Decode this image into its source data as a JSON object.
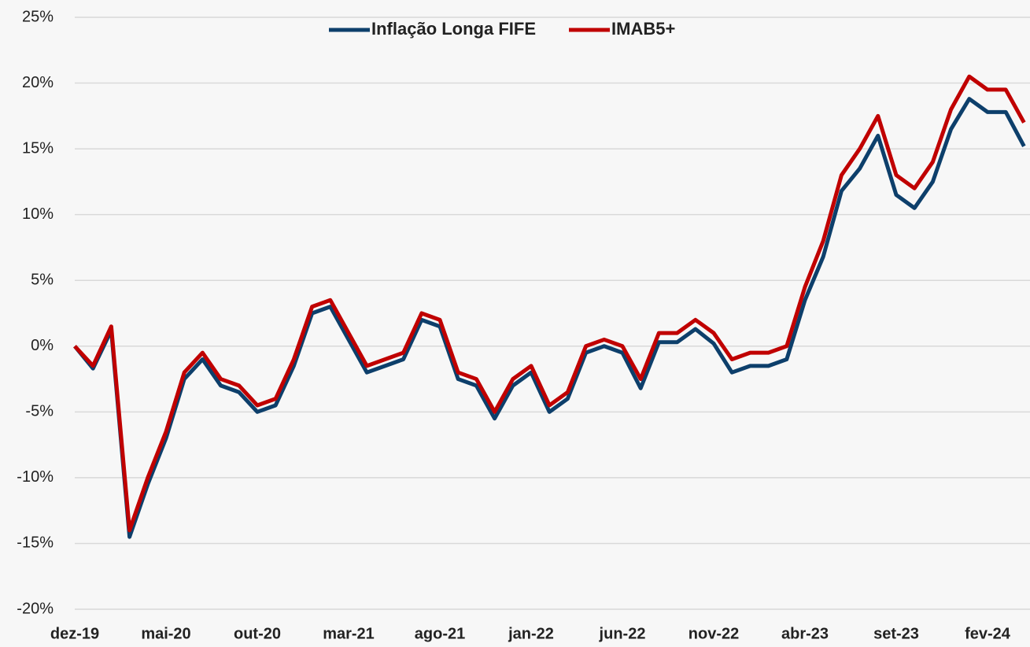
{
  "chart_data": {
    "type": "line",
    "categories": [
      "dez-19",
      null,
      null,
      null,
      null,
      "mai-20",
      null,
      null,
      null,
      null,
      "out-20",
      null,
      null,
      null,
      null,
      "mar-21",
      null,
      null,
      null,
      null,
      "ago-21",
      null,
      null,
      null,
      null,
      "jan-22",
      null,
      null,
      null,
      null,
      "jun-22",
      null,
      null,
      null,
      null,
      "nov-22",
      null,
      null,
      null,
      null,
      "abr-23",
      null,
      null,
      null,
      null,
      "set-23",
      null,
      null,
      null,
      null,
      "fev-24",
      null,
      null
    ],
    "series": [
      {
        "name": "Inflação Longa FIFE",
        "color": "#0d3f6b",
        "values": [
          0,
          -1.7,
          1.2,
          -14.5,
          -10.5,
          -7,
          -2.5,
          -1,
          -3,
          -3.5,
          -5,
          -4.5,
          -1.5,
          2.5,
          3,
          0.5,
          -2,
          -1.5,
          -1,
          2,
          1.5,
          -2.5,
          -3,
          -5.5,
          -3,
          -2,
          -5,
          -4,
          -0.5,
          0,
          -0.5,
          -3.2,
          0.3,
          0.3,
          1.3,
          0.2,
          -2,
          -1.5,
          -1.5,
          -1,
          3.5,
          6.8,
          11.8,
          13.5,
          16,
          11.5,
          10.5,
          12.5,
          16.5,
          18.8,
          17.8,
          17.8,
          15.2
        ]
      },
      {
        "name": "IMAB5+",
        "color": "#c00000",
        "values": [
          0,
          -1.5,
          1.5,
          -14,
          -10,
          -6.5,
          -2,
          -0.5,
          -2.5,
          -3,
          -4.5,
          -4,
          -1,
          3,
          3.5,
          1,
          -1.5,
          -1,
          -0.5,
          2.5,
          2,
          -2,
          -2.5,
          -5,
          -2.5,
          -1.5,
          -4.5,
          -3.5,
          0,
          0.5,
          0,
          -2.5,
          1,
          1,
          2,
          1,
          -1,
          -0.5,
          -0.5,
          0,
          4.5,
          8,
          13,
          15,
          17.5,
          13,
          12,
          14,
          18,
          20.5,
          19.5,
          19.5,
          17
        ]
      }
    ],
    "ylim": [
      -20,
      25
    ],
    "yticks": [
      {
        "value": -20,
        "label": "-20%"
      },
      {
        "value": -15,
        "label": "-15%"
      },
      {
        "value": -10,
        "label": "-10%"
      },
      {
        "value": -5,
        "label": "-5%"
      },
      {
        "value": 0,
        "label": "0%"
      },
      {
        "value": 5,
        "label": "5%"
      },
      {
        "value": 10,
        "label": "10%"
      },
      {
        "value": 15,
        "label": "15%"
      },
      {
        "value": 20,
        "label": "20%"
      },
      {
        "value": 25,
        "label": "25%"
      }
    ],
    "grid": true
  }
}
